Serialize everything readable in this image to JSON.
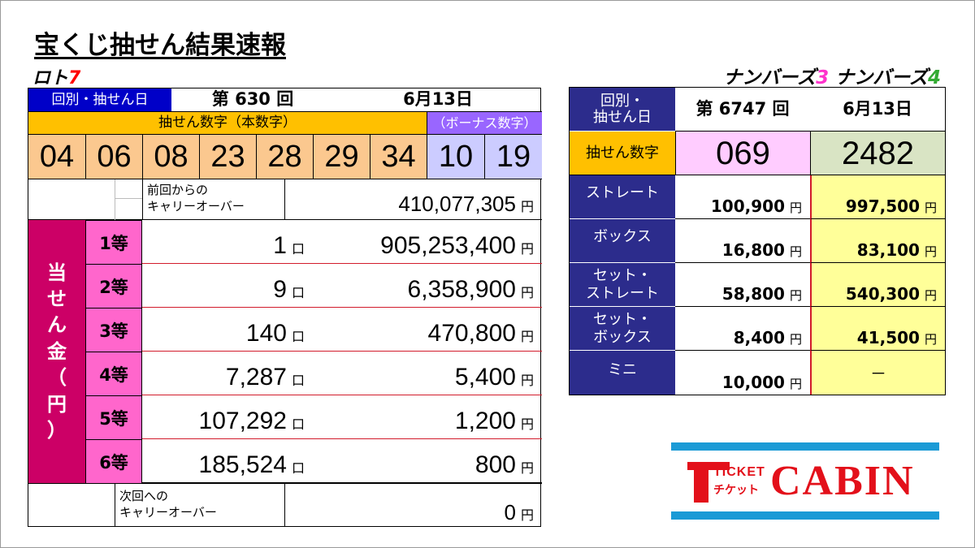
{
  "title": "宝くじ抽せん結果速報",
  "loto7": {
    "label_text": "ロト",
    "label_digit": "7",
    "round_date_label": "回別・抽せん日",
    "round": "第 630 回",
    "date": "6月13日",
    "main_numbers_header": "抽せん数字（本数字）",
    "bonus_numbers_header": "（ボーナス数字）",
    "main_numbers": [
      "04",
      "06",
      "08",
      "23",
      "28",
      "29",
      "34"
    ],
    "bonus_numbers": [
      "10",
      "19"
    ],
    "carryover_prev_label_1": "前回からの",
    "carryover_prev_label_2": "キャリーオーバー",
    "carryover_prev_amount": "410,077,305",
    "yen": "円",
    "kuchi": "口",
    "prize_side_label": [
      "当",
      "せ",
      "ん",
      "金",
      "（",
      "円",
      "）"
    ],
    "prizes": [
      {
        "rank": "1等",
        "winners": "1",
        "amount": "905,253,400"
      },
      {
        "rank": "2等",
        "winners": "9",
        "amount": "6,358,900"
      },
      {
        "rank": "3等",
        "winners": "140",
        "amount": "470,800"
      },
      {
        "rank": "4等",
        "winners": "7,287",
        "amount": "5,400"
      },
      {
        "rank": "5等",
        "winners": "107,292",
        "amount": "1,200"
      },
      {
        "rank": "6等",
        "winners": "185,524",
        "amount": "800"
      }
    ],
    "carryover_next_label_1": "次回への",
    "carryover_next_label_2": "キャリーオーバー",
    "carryover_next_amount": "0"
  },
  "numbers": {
    "label_text_a": "ナンバーズ",
    "label_digit_a": "3",
    "label_text_b": "ナンバーズ",
    "label_digit_b": "4",
    "round_date_label_1": "回別・",
    "round_date_label_2": "抽せん日",
    "round": "第 6747 回",
    "date": "6月13日",
    "draw_label": "抽せん数字",
    "n3_number": "069",
    "n4_number": "2482",
    "rows": [
      {
        "label_1": "ストレート",
        "label_2": "",
        "n3": "100,900",
        "n4": "997,500"
      },
      {
        "label_1": "ボックス",
        "label_2": "",
        "n3": "16,800",
        "n4": "83,100"
      },
      {
        "label_1": "セット・",
        "label_2": "ストレート",
        "n3": "58,800",
        "n4": "540,300"
      },
      {
        "label_1": "セット・",
        "label_2": "ボックス",
        "n3": "8,400",
        "n4": "41,500"
      },
      {
        "label_1": "ミニ",
        "label_2": "",
        "n3": "10,000",
        "n4": "－"
      }
    ]
  },
  "logo": {
    "ticket": "TICKET",
    "chiketto": "チケット",
    "cabin": "CABIN"
  },
  "colors": {
    "navy": "#2c2c8c",
    "orange": "#ffc000",
    "peach": "#fbc88f",
    "lavender": "#ccccff",
    "bonus_header": "#9966ff",
    "magenta_dark": "#cc0066",
    "pink": "#ff66cc",
    "light_pink": "#ffccff",
    "sage": "#d9e4c4",
    "yellow": "#ffff99",
    "red_line": "#d21b2b",
    "logo_blue": "#1a9ad6",
    "logo_red": "#e3101a"
  }
}
